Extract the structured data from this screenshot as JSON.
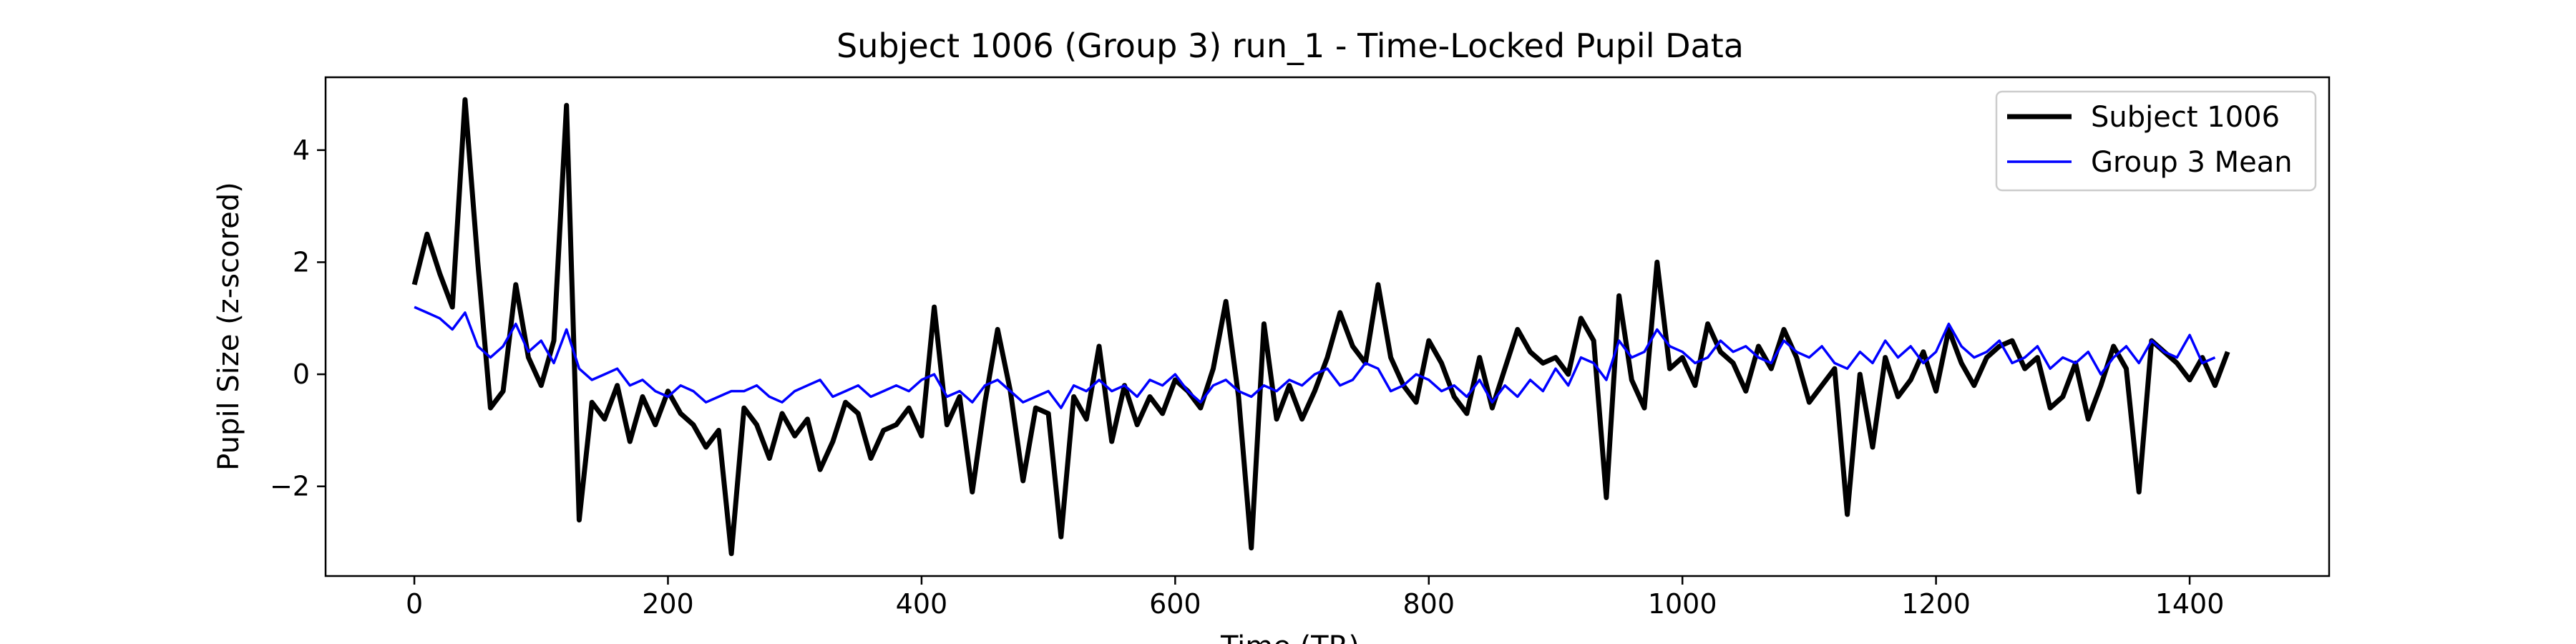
{
  "chart_data": {
    "type": "line",
    "title": "Subject 1006 (Group 3) run_1 - Time-Locked Pupil Data",
    "xlabel": "Time (TR)",
    "ylabel": "Pupil Size (z-scored)",
    "xlim": [
      -70,
      1510
    ],
    "ylim": [
      -3.6,
      5.3
    ],
    "xticks": [
      0,
      200,
      400,
      600,
      800,
      1000,
      1200,
      1400
    ],
    "yticks": [
      -2,
      0,
      2,
      4
    ],
    "xtick_labels": [
      "0",
      "200",
      "400",
      "600",
      "800",
      "1000",
      "1200",
      "1400"
    ],
    "ytick_labels": [
      "−2",
      "0",
      "2",
      "4"
    ],
    "grid": false,
    "legend_position": "top-right",
    "series": [
      {
        "name": "Subject 1006",
        "color": "#000000",
        "linewidth": 7,
        "x_start": 0,
        "x_step": 10,
        "values": [
          1.6,
          2.5,
          1.8,
          1.2,
          4.9,
          2.0,
          -0.6,
          -0.3,
          1.6,
          0.3,
          -0.2,
          0.6,
          4.8,
          -2.6,
          -0.5,
          -0.8,
          -0.2,
          -1.2,
          -0.4,
          -0.9,
          -0.3,
          -0.7,
          -0.9,
          -1.3,
          -1.0,
          -3.2,
          -0.6,
          -0.9,
          -1.5,
          -0.7,
          -1.1,
          -0.8,
          -1.7,
          -1.2,
          -0.5,
          -0.7,
          -1.5,
          -1.0,
          -0.9,
          -0.6,
          -1.1,
          1.2,
          -0.9,
          -0.4,
          -2.1,
          -0.5,
          0.8,
          -0.3,
          -1.9,
          -0.6,
          -0.7,
          -2.9,
          -0.4,
          -0.8,
          0.5,
          -1.2,
          -0.2,
          -0.9,
          -0.4,
          -0.7,
          -0.1,
          -0.3,
          -0.6,
          0.1,
          1.3,
          -0.4,
          -3.1,
          0.9,
          -0.8,
          -0.2,
          -0.8,
          -0.3,
          0.3,
          1.1,
          0.5,
          0.2,
          1.6,
          0.3,
          -0.2,
          -0.5,
          0.6,
          0.2,
          -0.4,
          -0.7,
          0.3,
          -0.6,
          0.1,
          0.8,
          0.4,
          0.2,
          0.3,
          0.0,
          1.0,
          0.6,
          -2.2,
          1.4,
          -0.1,
          -0.6,
          2.0,
          0.1,
          0.3,
          -0.2,
          0.9,
          0.4,
          0.2,
          -0.3,
          0.5,
          0.1,
          0.8,
          0.3,
          -0.5,
          -0.2,
          0.1,
          -2.5,
          0.0,
          -1.3,
          0.3,
          -0.4,
          -0.1,
          0.4,
          -0.3,
          0.8,
          0.2,
          -0.2,
          0.3,
          0.5,
          0.6,
          0.1,
          0.3,
          -0.6,
          -0.4,
          0.2,
          -0.8,
          -0.2,
          0.5,
          0.1,
          -2.1,
          0.6,
          0.4,
          0.2,
          -0.1,
          0.3,
          -0.2,
          0.4
        ]
      },
      {
        "name": "Group 3 Mean",
        "color": "#0000ff",
        "linewidth": 3.5,
        "x_start": 0,
        "x_step": 10,
        "values": [
          1.2,
          1.1,
          1.0,
          0.8,
          1.1,
          0.5,
          0.3,
          0.5,
          0.9,
          0.4,
          0.6,
          0.2,
          0.8,
          0.1,
          -0.1,
          0.0,
          0.1,
          -0.2,
          -0.1,
          -0.3,
          -0.4,
          -0.2,
          -0.3,
          -0.5,
          -0.4,
          -0.3,
          -0.3,
          -0.2,
          -0.4,
          -0.5,
          -0.3,
          -0.2,
          -0.1,
          -0.4,
          -0.3,
          -0.2,
          -0.4,
          -0.3,
          -0.2,
          -0.3,
          -0.1,
          0.0,
          -0.4,
          -0.3,
          -0.5,
          -0.2,
          -0.1,
          -0.3,
          -0.5,
          -0.4,
          -0.3,
          -0.6,
          -0.2,
          -0.3,
          -0.1,
          -0.3,
          -0.2,
          -0.4,
          -0.1,
          -0.2,
          0.0,
          -0.3,
          -0.5,
          -0.2,
          -0.1,
          -0.3,
          -0.4,
          -0.2,
          -0.3,
          -0.1,
          -0.2,
          0.0,
          0.1,
          -0.2,
          -0.1,
          0.2,
          0.1,
          -0.3,
          -0.2,
          0.0,
          -0.1,
          -0.3,
          -0.2,
          -0.4,
          -0.1,
          -0.5,
          -0.2,
          -0.4,
          -0.1,
          -0.3,
          0.1,
          -0.2,
          0.3,
          0.2,
          -0.1,
          0.6,
          0.3,
          0.4,
          0.8,
          0.5,
          0.4,
          0.2,
          0.3,
          0.6,
          0.4,
          0.5,
          0.3,
          0.2,
          0.6,
          0.4,
          0.3,
          0.5,
          0.2,
          0.1,
          0.4,
          0.2,
          0.6,
          0.3,
          0.5,
          0.2,
          0.4,
          0.9,
          0.5,
          0.3,
          0.4,
          0.6,
          0.2,
          0.3,
          0.5,
          0.1,
          0.3,
          0.2,
          0.4,
          0.0,
          0.3,
          0.5,
          0.2,
          0.6,
          0.4,
          0.3,
          0.7,
          0.2,
          0.3
        ]
      }
    ]
  }
}
